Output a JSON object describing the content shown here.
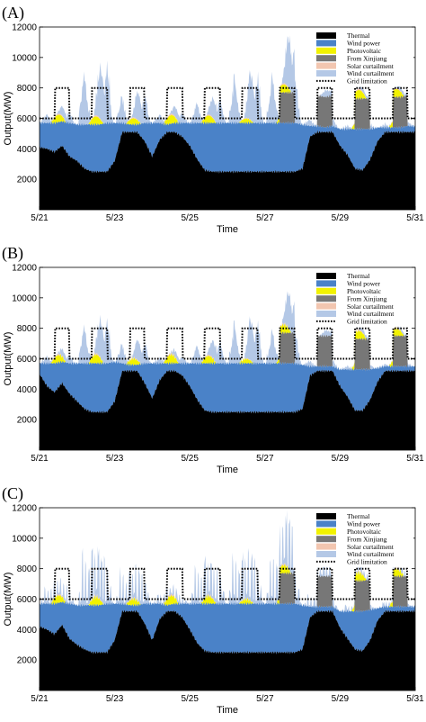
{
  "figure": {
    "panels": [
      {
        "label": "(A)",
        "chart_data": {
          "type": "area",
          "xlabel": "Time",
          "ylabel": "Output(MW)",
          "ylim": [
            0,
            12000
          ],
          "yticks": [
            2000,
            4000,
            6000,
            8000,
            10000,
            12000
          ],
          "xticks": [
            "5/21",
            "5/23",
            "5/25",
            "5/27",
            "5/29",
            "5/31"
          ],
          "legend_position": "top-right",
          "grid": false,
          "curtail_pattern": [
            0,
            1,
            1.6,
            2.4,
            3.6,
            3,
            1.8,
            0.9,
            0.3,
            0,
            0,
            0.5,
            1.4,
            2.8,
            3.9,
            3.6,
            3.1,
            2.2,
            3.3,
            3.8,
            2.9,
            1.3,
            0.4,
            0
          ],
          "series": [
            {
              "name": "Thermal",
              "color": "#000000",
              "values": [
                4100,
                4000,
                3800,
                4200,
                3500,
                3200,
                2700,
                2500,
                2500,
                2500,
                3200,
                5100,
                5100,
                5100,
                4500,
                3500,
                4600,
                5100,
                5100,
                4800,
                4200,
                3300,
                2600,
                2500,
                2500,
                2500,
                2500,
                2500,
                2500,
                2500,
                2500,
                2500,
                2500,
                2500,
                2500,
                2700,
                4800,
                5100,
                5100,
                5100,
                4200,
                3600,
                2700,
                2600,
                3300,
                4500,
                5100,
                5100,
                5100,
                5100,
                5100
              ]
            },
            {
              "name": "Wind power",
              "color": "#4a82c8",
              "values": [
                1600,
                1700,
                1900,
                1600,
                2200,
                2400,
                2900,
                3100,
                3100,
                3200,
                2500,
                600,
                500,
                500,
                1200,
                2200,
                1100,
                500,
                600,
                900,
                1500,
                2400,
                3100,
                3200,
                3200,
                3200,
                3200,
                3200,
                3200,
                3200,
                3200,
                3200,
                3200,
                3200,
                3200,
                2900,
                700,
                400,
                300,
                400,
                1100,
                1700,
                2600,
                2700,
                2000,
                900,
                300,
                300,
                300,
                400,
                400
              ]
            },
            {
              "name": "Photovoltaic",
              "color": "#f2f200",
              "peaks": [
                600,
                650,
                500,
                700,
                600,
                350,
                650,
                0,
                700,
                650,
                600
              ],
              "mode": "sun"
            },
            {
              "name": "From Xinjiang",
              "color": "#777777",
              "level": 2000,
              "mode": "block"
            },
            {
              "name": "Solar curtailment",
              "color": "#f2c6b0",
              "mode": "thin"
            },
            {
              "name": "Wind curtailment",
              "color": "#b4c8e6",
              "peaks": [
                800,
                4500,
                2200,
                800,
                1800,
                3800,
                4000,
                600,
                300,
                300,
                200
              ],
              "mode": "curtail"
            },
            {
              "name": "Grid limitation",
              "color": "#000000",
              "low": 6000,
              "high": 8000,
              "mode": "line"
            }
          ]
        }
      },
      {
        "label": "(B)",
        "chart_data": {
          "type": "area",
          "xlabel": "Time",
          "ylabel": "Output(MW)",
          "ylim": [
            0,
            12000
          ],
          "yticks": [
            2000,
            4000,
            6000,
            8000,
            10000,
            12000
          ],
          "xticks": [
            "5/21",
            "5/23",
            "5/25",
            "5/27",
            "5/29",
            "5/31"
          ],
          "legend_position": "top-right",
          "grid": false,
          "curtail_pattern": [
            0,
            1,
            1.6,
            2.4,
            3.6,
            3,
            1.8,
            0.9,
            0.3,
            0,
            0,
            0.5,
            1.4,
            2.8,
            3.9,
            3.6,
            3.1,
            2.2,
            3.3,
            3.8,
            2.9,
            1.3,
            0.4,
            0
          ],
          "series": [
            {
              "name": "Thermal",
              "color": "#000000",
              "values": [
                5000,
                4200,
                3800,
                4400,
                3700,
                3200,
                2700,
                2500,
                2500,
                2500,
                3200,
                5200,
                5200,
                5200,
                4400,
                3400,
                4600,
                5200,
                5200,
                4900,
                4200,
                3300,
                2600,
                2500,
                2500,
                2500,
                2500,
                2500,
                2500,
                2500,
                2500,
                2500,
                2500,
                2500,
                2500,
                2700,
                4900,
                5200,
                5200,
                5200,
                4200,
                3500,
                2600,
                2600,
                3300,
                4500,
                5200,
                5200,
                5200,
                5200,
                5200
              ]
            },
            {
              "name": "Wind power",
              "color": "#4a82c8",
              "values": [
                700,
                1500,
                1900,
                1400,
                2000,
                2500,
                3000,
                3200,
                3200,
                3200,
                2600,
                500,
                400,
                400,
                1300,
                2300,
                1100,
                500,
                500,
                800,
                1500,
                2400,
                3100,
                3200,
                3200,
                3200,
                3200,
                3200,
                3200,
                3200,
                3200,
                3200,
                3200,
                3200,
                3200,
                2900,
                600,
                300,
                300,
                300,
                1100,
                1800,
                2700,
                2700,
                2000,
                900,
                300,
                300,
                300,
                300,
                300
              ]
            },
            {
              "name": "Photovoltaic",
              "color": "#f2f200",
              "peaks": [
                600,
                700,
                500,
                700,
                600,
                350,
                650,
                0,
                650,
                600,
                650
              ],
              "mode": "sun"
            },
            {
              "name": "From Xinjiang",
              "color": "#777777",
              "level": 2000,
              "mode": "block"
            },
            {
              "name": "Solar curtailment",
              "color": "#f2c6b0",
              "mode": "thin"
            },
            {
              "name": "Wind curtailment",
              "color": "#b4c8e6",
              "peaks": [
                600,
                3300,
                1600,
                500,
                1600,
                3300,
                2800,
                500,
                300,
                200,
                200
              ],
              "mode": "curtail"
            },
            {
              "name": "Grid limitation",
              "color": "#000000",
              "low": 6000,
              "high": 8000,
              "mode": "line"
            }
          ]
        }
      },
      {
        "label": "(C)",
        "chart_data": {
          "type": "area",
          "xlabel": "Time",
          "ylabel": "Output(MW)",
          "ylim": [
            0,
            12000
          ],
          "yticks": [
            2000,
            4000,
            6000,
            8000,
            10000,
            12000
          ],
          "xticks": [
            "5/21",
            "5/23",
            "5/25",
            "5/27",
            "5/29",
            "5/31"
          ],
          "legend_position": "top-right",
          "grid": false,
          "curtail_pattern": [
            0,
            1,
            0.3,
            3.9,
            0.6,
            3.4,
            0.2,
            2.8,
            0.4,
            3.8,
            0.1,
            3.1,
            0.5,
            3.9,
            0.2,
            3.6,
            0.4,
            3.9,
            0.3,
            2.6,
            0.5,
            1.3,
            0.2,
            0
          ],
          "series": [
            {
              "name": "Thermal",
              "color": "#000000",
              "values": [
                4200,
                4000,
                3700,
                4300,
                3400,
                3000,
                2700,
                2500,
                2500,
                2500,
                3300,
                5200,
                5200,
                5200,
                4400,
                3300,
                4700,
                5200,
                5200,
                4800,
                4000,
                3100,
                2600,
                2500,
                2500,
                2500,
                2500,
                2500,
                2500,
                2500,
                2500,
                2500,
                2500,
                2500,
                2500,
                2700,
                4800,
                5200,
                5200,
                5200,
                4100,
                3400,
                2700,
                2600,
                3300,
                4600,
                5200,
                5200,
                5200,
                5200,
                5200
              ]
            },
            {
              "name": "Wind power",
              "color": "#4a82c8",
              "values": [
                1500,
                1700,
                2000,
                1500,
                2300,
                2600,
                2900,
                3100,
                3100,
                3200,
                2400,
                500,
                400,
                400,
                1300,
                2400,
                1000,
                400,
                500,
                900,
                1700,
                2600,
                3100,
                3200,
                3200,
                3200,
                3200,
                3200,
                3200,
                3200,
                3200,
                3200,
                3200,
                3200,
                3200,
                2900,
                700,
                300,
                300,
                300,
                1100,
                1800,
                2500,
                2600,
                2000,
                800,
                300,
                300,
                300,
                300,
                300
              ]
            },
            {
              "name": "Photovoltaic",
              "color": "#f2f200",
              "peaks": [
                600,
                650,
                500,
                700,
                600,
                350,
                650,
                0,
                650,
                600,
                650
              ],
              "mode": "sun"
            },
            {
              "name": "From Xinjiang",
              "color": "#777777",
              "level": 2000,
              "mode": "block"
            },
            {
              "name": "Solar curtailment",
              "color": "#f2c6b0",
              "mode": "thin"
            },
            {
              "name": "Wind curtailment",
              "color": "#b4c8e6",
              "peaks": [
                1400,
                4000,
                2600,
                800,
                3000,
                3900,
                3900,
                900,
                500,
                400,
                300
              ],
              "mode": "curtail"
            },
            {
              "name": "Grid limitation",
              "color": "#000000",
              "low": 6000,
              "high": 8000,
              "mode": "line"
            }
          ]
        }
      }
    ]
  }
}
